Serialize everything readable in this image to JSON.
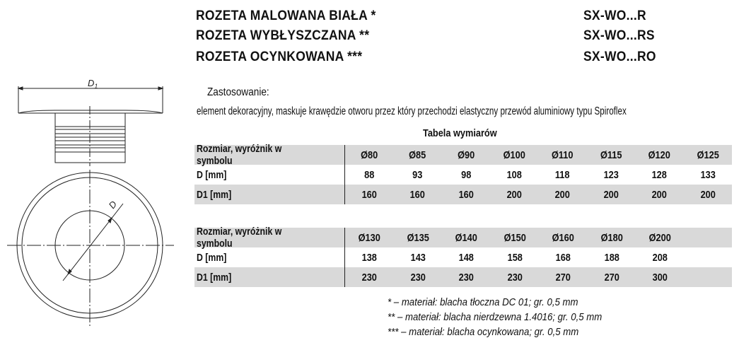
{
  "products": [
    {
      "name": "ROZETA MALOWANA BIAŁA *",
      "code": "SX-WO...R"
    },
    {
      "name": "ROZETA WYBŁYSZCZANA **",
      "code": "SX-WO...RS"
    },
    {
      "name": "ROZETA OCYNKOWANA ***",
      "code": "SX-WO...RO"
    }
  ],
  "application": {
    "heading": "Zastosowanie:",
    "text": "element dekoracyjny, maskuje krawędzie otworu przez który przechodzi elastyczny przewód aluminiowy typu Spiroflex"
  },
  "drawing": {
    "label_d1": "D1",
    "label_d": "D"
  },
  "table_title": "Tabela wymiarów",
  "tables": [
    {
      "rows": [
        {
          "label": "Rozmiar, wyróżnik w symbolu",
          "values": [
            "Ø80",
            "Ø85",
            "Ø90",
            "Ø100",
            "Ø110",
            "Ø115",
            "Ø120",
            "Ø125"
          ]
        },
        {
          "label": "D [mm]",
          "values": [
            "88",
            "93",
            "98",
            "108",
            "118",
            "123",
            "128",
            "133"
          ]
        },
        {
          "label": "D1 [mm]",
          "values": [
            "160",
            "160",
            "160",
            "200",
            "200",
            "200",
            "200",
            "200"
          ]
        }
      ]
    },
    {
      "rows": [
        {
          "label": "Rozmiar, wyróżnik w symbolu",
          "values": [
            "Ø130",
            "Ø135",
            "Ø140",
            "Ø150",
            "Ø160",
            "Ø180",
            "Ø200"
          ]
        },
        {
          "label": "D [mm]",
          "values": [
            "138",
            "143",
            "148",
            "158",
            "168",
            "188",
            "208"
          ]
        },
        {
          "label": "D1 [mm]",
          "values": [
            "230",
            "230",
            "230",
            "230",
            "270",
            "270",
            "300"
          ]
        }
      ]
    }
  ],
  "footnotes": [
    "* – materiał: blacha tłoczna DC 01; gr. 0,5 mm",
    "** – materiał: blacha nierdzewna 1.4016; gr. 0,5 mm",
    "*** – materiał: blacha ocynkowana; gr. 0,5 mm"
  ],
  "colors": {
    "row_gray": "#d9d9d9",
    "text": "#111111"
  }
}
